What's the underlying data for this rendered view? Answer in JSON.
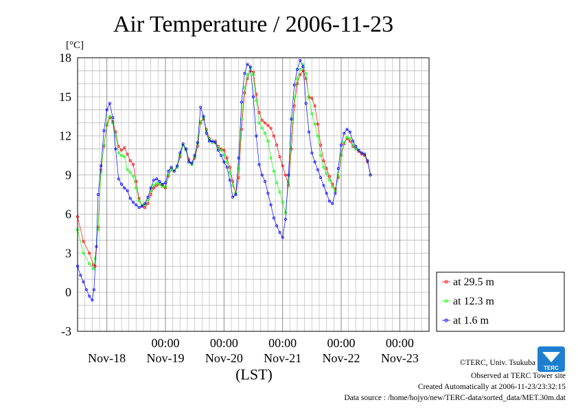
{
  "chart_data": {
    "type": "line",
    "title": "Air Temperature / 2006-11-23",
    "ylabel": "[°C]",
    "xlabel": "(LST)",
    "ylim": [
      -3,
      18
    ],
    "yticks": [
      "-3",
      "0",
      "3",
      "6",
      "9",
      "12",
      "15",
      "18"
    ],
    "xlim": [
      -0.5,
      5.5
    ],
    "xtick_time_label": "00:00",
    "xtick_time_labels": [
      "00:00",
      "00:00",
      "00:00",
      "00:00",
      "00:00"
    ],
    "day_labels": [
      "Nov-18",
      "Nov-19",
      "Nov-20",
      "Nov-21",
      "Nov-22",
      "Nov-23"
    ],
    "grid": true,
    "legend_position": "right",
    "series": [
      {
        "name": "at 29.5 m",
        "color": "#ff0000",
        "points": [
          [
            -0.5,
            5.8
          ],
          [
            -0.4,
            3.9
          ],
          [
            -0.3,
            3.0
          ],
          [
            -0.23,
            2.1
          ],
          [
            -0.2,
            2.0
          ],
          [
            -0.15,
            5.0
          ],
          [
            -0.1,
            9.4
          ],
          [
            -0.05,
            11.2
          ],
          [
            0.0,
            12.8
          ],
          [
            0.05,
            13.4
          ],
          [
            0.1,
            13.1
          ],
          [
            0.15,
            12.3
          ],
          [
            0.2,
            11.2
          ],
          [
            0.25,
            10.9
          ],
          [
            0.3,
            11.1
          ],
          [
            0.35,
            10.6
          ],
          [
            0.4,
            10.1
          ],
          [
            0.45,
            9.8
          ],
          [
            0.5,
            8.5
          ],
          [
            0.55,
            7.2
          ],
          [
            0.6,
            6.6
          ],
          [
            0.65,
            6.5
          ],
          [
            0.7,
            6.8
          ],
          [
            0.75,
            7.5
          ],
          [
            0.8,
            8.0
          ],
          [
            0.85,
            8.2
          ],
          [
            0.9,
            8.3
          ],
          [
            0.95,
            8.2
          ],
          [
            1.0,
            8.0
          ],
          [
            1.05,
            8.9
          ],
          [
            1.1,
            9.4
          ],
          [
            1.15,
            9.3
          ],
          [
            1.2,
            9.6
          ],
          [
            1.25,
            10.4
          ],
          [
            1.3,
            11.3
          ],
          [
            1.35,
            11.0
          ],
          [
            1.4,
            10.2
          ],
          [
            1.45,
            9.8
          ],
          [
            1.5,
            10.3
          ],
          [
            1.55,
            11.2
          ],
          [
            1.6,
            13.0
          ],
          [
            1.65,
            13.3
          ],
          [
            1.7,
            12.5
          ],
          [
            1.75,
            11.8
          ],
          [
            1.8,
            11.5
          ],
          [
            1.85,
            11.6
          ],
          [
            1.9,
            11.2
          ],
          [
            1.95,
            11.0
          ],
          [
            2.0,
            10.9
          ],
          [
            2.05,
            10.3
          ],
          [
            2.1,
            9.6
          ],
          [
            2.15,
            8.5
          ],
          [
            2.2,
            7.5
          ],
          [
            2.25,
            8.8
          ],
          [
            2.3,
            12.5
          ],
          [
            2.35,
            15.3
          ],
          [
            2.4,
            16.4
          ],
          [
            2.45,
            17.0
          ],
          [
            2.5,
            16.9
          ],
          [
            2.55,
            15.2
          ],
          [
            2.6,
            13.8
          ],
          [
            2.65,
            13.2
          ],
          [
            2.7,
            13.0
          ],
          [
            2.75,
            12.8
          ],
          [
            2.8,
            12.6
          ],
          [
            2.85,
            12.0
          ],
          [
            2.9,
            11.3
          ],
          [
            2.95,
            10.4
          ],
          [
            3.0,
            9.7
          ],
          [
            3.05,
            9.0
          ],
          [
            3.1,
            8.2
          ],
          [
            3.15,
            11.0
          ],
          [
            3.2,
            14.3
          ],
          [
            3.25,
            16.0
          ],
          [
            3.3,
            16.7
          ],
          [
            3.35,
            17.0
          ],
          [
            3.4,
            16.4
          ],
          [
            3.45,
            15.0
          ],
          [
            3.5,
            14.9
          ],
          [
            3.55,
            14.3
          ],
          [
            3.6,
            12.9
          ],
          [
            3.65,
            11.3
          ],
          [
            3.7,
            10.1
          ],
          [
            3.75,
            9.5
          ],
          [
            3.8,
            8.9
          ],
          [
            3.85,
            8.3
          ],
          [
            3.9,
            7.9
          ],
          [
            3.95,
            8.8
          ],
          [
            4.0,
            10.5
          ],
          [
            4.05,
            11.4
          ],
          [
            4.1,
            11.8
          ],
          [
            4.15,
            11.6
          ],
          [
            4.2,
            11.2
          ],
          [
            4.25,
            11.0
          ],
          [
            4.3,
            10.8
          ],
          [
            4.35,
            10.6
          ],
          [
            4.4,
            10.5
          ],
          [
            4.45,
            10.0
          ],
          [
            4.5,
            9.0
          ]
        ]
      },
      {
        "name": "at 12.3 m",
        "color": "#00ff00",
        "points": [
          [
            -0.5,
            4.8
          ],
          [
            -0.4,
            3.0
          ],
          [
            -0.3,
            2.2
          ],
          [
            -0.23,
            1.8
          ],
          [
            -0.2,
            2.6
          ],
          [
            -0.15,
            4.8
          ],
          [
            -0.1,
            9.2
          ],
          [
            -0.05,
            11.3
          ],
          [
            0.0,
            12.9
          ],
          [
            0.05,
            13.5
          ],
          [
            0.1,
            13.0
          ],
          [
            0.15,
            12.0
          ],
          [
            0.2,
            10.7
          ],
          [
            0.25,
            10.5
          ],
          [
            0.3,
            10.4
          ],
          [
            0.35,
            9.4
          ],
          [
            0.4,
            9.2
          ],
          [
            0.45,
            8.9
          ],
          [
            0.5,
            8.0
          ],
          [
            0.55,
            7.0
          ],
          [
            0.6,
            6.7
          ],
          [
            0.65,
            6.7
          ],
          [
            0.7,
            7.1
          ],
          [
            0.75,
            7.8
          ],
          [
            0.8,
            8.2
          ],
          [
            0.85,
            8.4
          ],
          [
            0.9,
            8.3
          ],
          [
            0.95,
            8.1
          ],
          [
            1.0,
            8.1
          ],
          [
            1.05,
            9.0
          ],
          [
            1.1,
            9.4
          ],
          [
            1.15,
            9.3
          ],
          [
            1.2,
            9.6
          ],
          [
            1.25,
            10.5
          ],
          [
            1.3,
            11.3
          ],
          [
            1.35,
            10.9
          ],
          [
            1.4,
            10.0
          ],
          [
            1.45,
            9.8
          ],
          [
            1.5,
            10.4
          ],
          [
            1.55,
            11.4
          ],
          [
            1.6,
            13.1
          ],
          [
            1.65,
            13.4
          ],
          [
            1.7,
            12.4
          ],
          [
            1.75,
            11.7
          ],
          [
            1.8,
            11.5
          ],
          [
            1.85,
            11.5
          ],
          [
            1.9,
            11.1
          ],
          [
            1.95,
            10.9
          ],
          [
            2.0,
            10.5
          ],
          [
            2.05,
            10.0
          ],
          [
            2.1,
            9.2
          ],
          [
            2.15,
            8.2
          ],
          [
            2.2,
            7.6
          ],
          [
            2.25,
            9.5
          ],
          [
            2.3,
            13.3
          ],
          [
            2.35,
            15.7
          ],
          [
            2.4,
            16.7
          ],
          [
            2.45,
            17.2
          ],
          [
            2.5,
            16.7
          ],
          [
            2.55,
            14.7
          ],
          [
            2.6,
            13.0
          ],
          [
            2.65,
            12.6
          ],
          [
            2.7,
            12.2
          ],
          [
            2.75,
            11.6
          ],
          [
            2.8,
            10.3
          ],
          [
            2.85,
            9.3
          ],
          [
            2.9,
            8.4
          ],
          [
            2.95,
            7.7
          ],
          [
            3.0,
            6.9
          ],
          [
            3.05,
            6.1
          ],
          [
            3.1,
            8.4
          ],
          [
            3.15,
            12.0
          ],
          [
            3.2,
            14.9
          ],
          [
            3.25,
            16.4
          ],
          [
            3.3,
            17.1
          ],
          [
            3.35,
            17.5
          ],
          [
            3.4,
            16.8
          ],
          [
            3.45,
            14.9
          ],
          [
            3.5,
            13.7
          ],
          [
            3.55,
            12.9
          ],
          [
            3.6,
            12.0
          ],
          [
            3.65,
            10.5
          ],
          [
            3.7,
            9.6
          ],
          [
            3.75,
            9.1
          ],
          [
            3.8,
            8.6
          ],
          [
            3.85,
            8.1
          ],
          [
            3.9,
            7.8
          ],
          [
            3.95,
            8.9
          ],
          [
            4.0,
            10.6
          ],
          [
            4.05,
            11.5
          ],
          [
            4.1,
            11.9
          ],
          [
            4.15,
            11.8
          ],
          [
            4.2,
            11.3
          ],
          [
            4.25,
            11.0
          ],
          [
            4.3,
            10.9
          ],
          [
            4.35,
            10.7
          ],
          [
            4.4,
            10.6
          ],
          [
            4.45,
            10.1
          ],
          [
            4.5,
            9.0
          ]
        ]
      },
      {
        "name": "at 1.6 m",
        "color": "#0000ff",
        "points": [
          [
            -0.5,
            2.0
          ],
          [
            -0.45,
            1.3
          ],
          [
            -0.4,
            0.8
          ],
          [
            -0.35,
            0.2
          ],
          [
            -0.3,
            -0.3
          ],
          [
            -0.25,
            -0.6
          ],
          [
            -0.22,
            0.2
          ],
          [
            -0.18,
            3.5
          ],
          [
            -0.15,
            7.5
          ],
          [
            -0.1,
            9.7
          ],
          [
            -0.05,
            12.4
          ],
          [
            0.0,
            14.0
          ],
          [
            0.05,
            14.5
          ],
          [
            0.1,
            13.4
          ],
          [
            0.15,
            11.0
          ],
          [
            0.2,
            8.7
          ],
          [
            0.25,
            8.3
          ],
          [
            0.3,
            8.0
          ],
          [
            0.35,
            7.8
          ],
          [
            0.4,
            7.2
          ],
          [
            0.45,
            6.9
          ],
          [
            0.5,
            6.7
          ],
          [
            0.55,
            6.5
          ],
          [
            0.6,
            6.6
          ],
          [
            0.65,
            6.8
          ],
          [
            0.7,
            7.3
          ],
          [
            0.75,
            8.0
          ],
          [
            0.8,
            8.6
          ],
          [
            0.85,
            8.7
          ],
          [
            0.9,
            8.5
          ],
          [
            0.95,
            8.3
          ],
          [
            1.0,
            8.4
          ],
          [
            1.05,
            9.3
          ],
          [
            1.1,
            9.6
          ],
          [
            1.15,
            9.3
          ],
          [
            1.2,
            9.7
          ],
          [
            1.25,
            10.7
          ],
          [
            1.3,
            11.4
          ],
          [
            1.35,
            11.0
          ],
          [
            1.4,
            10.0
          ],
          [
            1.45,
            9.9
          ],
          [
            1.5,
            10.5
          ],
          [
            1.55,
            11.5
          ],
          [
            1.6,
            14.2
          ],
          [
            1.65,
            13.5
          ],
          [
            1.7,
            12.2
          ],
          [
            1.75,
            11.6
          ],
          [
            1.8,
            11.6
          ],
          [
            1.85,
            11.5
          ],
          [
            1.9,
            10.9
          ],
          [
            1.95,
            10.5
          ],
          [
            2.0,
            10.0
          ],
          [
            2.05,
            9.6
          ],
          [
            2.1,
            8.6
          ],
          [
            2.15,
            7.3
          ],
          [
            2.2,
            7.5
          ],
          [
            2.25,
            10.3
          ],
          [
            2.3,
            14.6
          ],
          [
            2.35,
            16.8
          ],
          [
            2.4,
            17.5
          ],
          [
            2.45,
            17.3
          ],
          [
            2.5,
            15.0
          ],
          [
            2.55,
            12.0
          ],
          [
            2.6,
            9.8
          ],
          [
            2.65,
            9.0
          ],
          [
            2.7,
            8.5
          ],
          [
            2.75,
            7.6
          ],
          [
            2.8,
            6.7
          ],
          [
            2.85,
            5.7
          ],
          [
            2.9,
            5.1
          ],
          [
            2.95,
            4.6
          ],
          [
            3.0,
            4.2
          ],
          [
            3.05,
            5.6
          ],
          [
            3.1,
            9.0
          ],
          [
            3.15,
            13.3
          ],
          [
            3.2,
            15.9
          ],
          [
            3.25,
            17.1
          ],
          [
            3.3,
            17.8
          ],
          [
            3.35,
            17.3
          ],
          [
            3.4,
            14.5
          ],
          [
            3.45,
            12.3
          ],
          [
            3.5,
            10.7
          ],
          [
            3.55,
            10.0
          ],
          [
            3.6,
            9.4
          ],
          [
            3.65,
            8.8
          ],
          [
            3.7,
            8.2
          ],
          [
            3.75,
            7.6
          ],
          [
            3.8,
            7.0
          ],
          [
            3.85,
            6.8
          ],
          [
            3.9,
            7.6
          ],
          [
            3.95,
            9.5
          ],
          [
            4.0,
            11.3
          ],
          [
            4.05,
            12.2
          ],
          [
            4.1,
            12.5
          ],
          [
            4.15,
            12.3
          ],
          [
            4.2,
            11.6
          ],
          [
            4.25,
            11.2
          ],
          [
            4.3,
            10.9
          ],
          [
            4.35,
            10.7
          ],
          [
            4.4,
            10.6
          ],
          [
            4.45,
            10.1
          ],
          [
            4.5,
            9.0
          ]
        ]
      }
    ]
  },
  "credits": {
    "copyright": "©TERC, Univ. Tsukuba",
    "observed": "Observed at TERC Tower site",
    "created": "Created Automatically at 2006-11-23/23:32:15",
    "source": "Data source : /home/hojyo/new/TERC-data/sorted_data/MET.30m.dat"
  },
  "logo": {
    "text": "TERC",
    "color": "#1e7fd0"
  }
}
